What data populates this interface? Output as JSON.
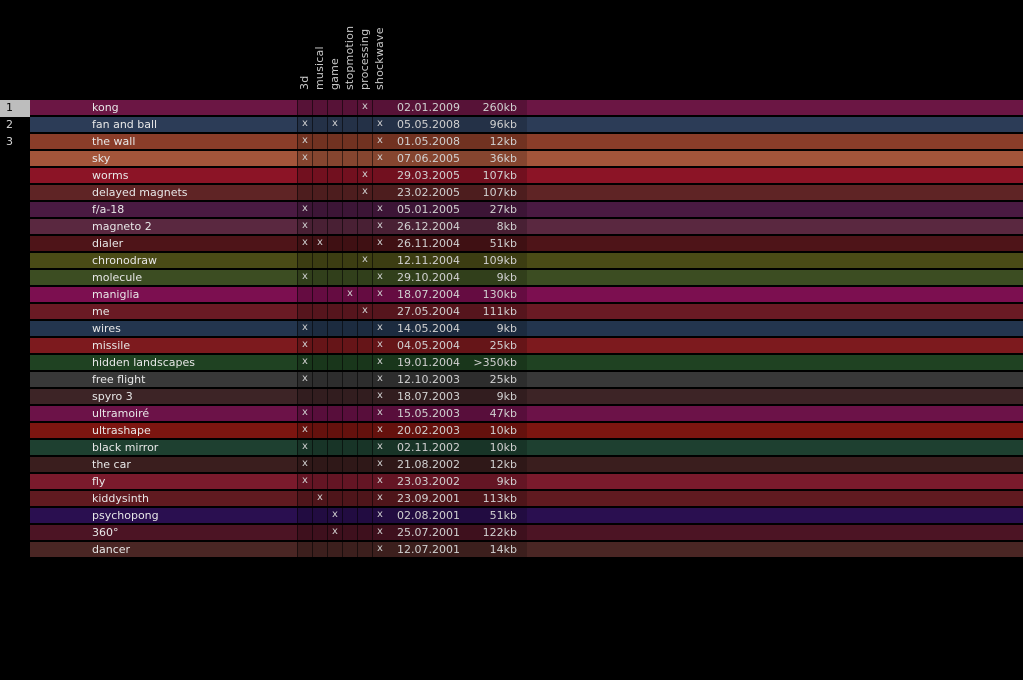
{
  "categories": [
    "3d",
    "musical",
    "game",
    "stopmotion",
    "processing",
    "shockwave"
  ],
  "pages": [
    "1",
    "2",
    "3"
  ],
  "active_page": "1",
  "items": [
    {
      "title": "kong",
      "flags": [
        0,
        0,
        0,
        0,
        1,
        0
      ],
      "date": "02.01.2009",
      "size": "260kb",
      "color": "#6b1644"
    },
    {
      "title": "fan and ball",
      "flags": [
        1,
        0,
        1,
        0,
        0,
        1
      ],
      "date": "05.05.2008",
      "size": "96kb",
      "color": "#2c3c57"
    },
    {
      "title": "the wall",
      "flags": [
        1,
        0,
        0,
        0,
        0,
        1
      ],
      "date": "01.05.2008",
      "size": "12kb",
      "color": "#8a3d29"
    },
    {
      "title": "sky",
      "flags": [
        1,
        0,
        0,
        0,
        0,
        1
      ],
      "date": "07.06.2005",
      "size": "36kb",
      "color": "#a3553a"
    },
    {
      "title": "worms",
      "flags": [
        0,
        0,
        0,
        0,
        1,
        0
      ],
      "date": "29.03.2005",
      "size": "107kb",
      "color": "#8c1426"
    },
    {
      "title": "delayed magnets",
      "flags": [
        0,
        0,
        0,
        0,
        1,
        0
      ],
      "date": "23.02.2005",
      "size": "107kb",
      "color": "#5f2425"
    },
    {
      "title": "f/a-18",
      "flags": [
        1,
        0,
        0,
        0,
        0,
        1
      ],
      "date": "05.01.2005",
      "size": "27kb",
      "color": "#4a1a42"
    },
    {
      "title": "magneto 2",
      "flags": [
        1,
        0,
        0,
        0,
        0,
        1
      ],
      "date": "26.12.2004",
      "size": "8kb",
      "color": "#5a2840"
    },
    {
      "title": "dialer",
      "flags": [
        1,
        1,
        0,
        0,
        0,
        1
      ],
      "date": "26.11.2004",
      "size": "51kb",
      "color": "#4e1418"
    },
    {
      "title": "chronodraw",
      "flags": [
        0,
        0,
        0,
        0,
        1,
        0
      ],
      "date": "12.11.2004",
      "size": "109kb",
      "color": "#4a4b16"
    },
    {
      "title": "molecule",
      "flags": [
        1,
        0,
        0,
        0,
        0,
        1
      ],
      "date": "29.10.2004",
      "size": "9kb",
      "color": "#3c4d22"
    },
    {
      "title": "maniglia",
      "flags": [
        0,
        0,
        0,
        1,
        0,
        1
      ],
      "date": "18.07.2004",
      "size": "130kb",
      "color": "#7c0f50"
    },
    {
      "title": "me",
      "flags": [
        0,
        0,
        0,
        0,
        1,
        0
      ],
      "date": "27.05.2004",
      "size": "111kb",
      "color": "#6a1a24"
    },
    {
      "title": "wires",
      "flags": [
        1,
        0,
        0,
        0,
        0,
        1
      ],
      "date": "14.05.2004",
      "size": "9kb",
      "color": "#23354e"
    },
    {
      "title": "missile",
      "flags": [
        1,
        0,
        0,
        0,
        0,
        1
      ],
      "date": "04.05.2004",
      "size": "25kb",
      "color": "#7d1a1e"
    },
    {
      "title": "hidden landscapes",
      "flags": [
        1,
        0,
        0,
        0,
        0,
        1
      ],
      "date": "19.01.2004",
      "size": ">350kb",
      "color": "#1f4222"
    },
    {
      "title": "free flight",
      "flags": [
        1,
        0,
        0,
        0,
        0,
        1
      ],
      "date": "12.10.2003",
      "size": "25kb",
      "color": "#383838"
    },
    {
      "title": "spyro 3",
      "flags": [
        0,
        0,
        0,
        0,
        0,
        1
      ],
      "date": "18.07.2003",
      "size": "9kb",
      "color": "#3d2426"
    },
    {
      "title": "ultramoiré",
      "flags": [
        1,
        0,
        0,
        0,
        0,
        1
      ],
      "date": "15.05.2003",
      "size": "47kb",
      "color": "#6c1248"
    },
    {
      "title": "ultrashape",
      "flags": [
        1,
        0,
        0,
        0,
        0,
        1
      ],
      "date": "20.02.2003",
      "size": "10kb",
      "color": "#7c1510"
    },
    {
      "title": "black mirror",
      "flags": [
        1,
        0,
        0,
        0,
        0,
        1
      ],
      "date": "02.11.2002",
      "size": "10kb",
      "color": "#1e4030"
    },
    {
      "title": "the car",
      "flags": [
        1,
        0,
        0,
        0,
        0,
        1
      ],
      "date": "21.08.2002",
      "size": "12kb",
      "color": "#3a1e1e"
    },
    {
      "title": "fly",
      "flags": [
        1,
        0,
        0,
        0,
        0,
        1
      ],
      "date": "23.03.2002",
      "size": "9kb",
      "color": "#7a1a2c"
    },
    {
      "title": "kiddysinth",
      "flags": [
        0,
        1,
        0,
        0,
        0,
        1
      ],
      "date": "23.09.2001",
      "size": "113kb",
      "color": "#601a20"
    },
    {
      "title": "psychopong",
      "flags": [
        0,
        0,
        1,
        0,
        0,
        1
      ],
      "date": "02.08.2001",
      "size": "51kb",
      "color": "#2a0f50"
    },
    {
      "title": "360°",
      "flags": [
        0,
        0,
        1,
        0,
        0,
        1
      ],
      "date": "25.07.2001",
      "size": "122kb",
      "color": "#4c1424"
    },
    {
      "title": "dancer",
      "flags": [
        0,
        0,
        0,
        0,
        0,
        1
      ],
      "date": "12.07.2001",
      "size": "14kb",
      "color": "#4a2624"
    }
  ]
}
